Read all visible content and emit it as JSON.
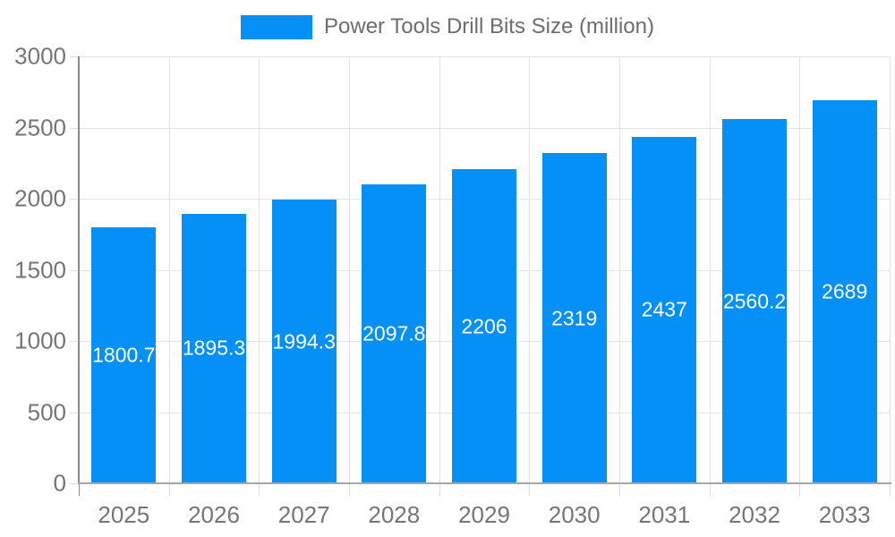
{
  "legend": {
    "label": "Power Tools Drill Bits Size (million)"
  },
  "colors": {
    "bar": "#0590f8",
    "grid": "#e3e3e3",
    "axis_y": "#8a8a8a",
    "axis_x": "#a6a6a6",
    "tick": "#dedede",
    "axis_text": "#757575",
    "legend_text": "#6d6d6d",
    "value_text": "#ffffff"
  },
  "chart_data": {
    "type": "bar",
    "title": "Power Tools Drill Bits Size (million)",
    "categories": [
      "2025",
      "2026",
      "2027",
      "2028",
      "2029",
      "2030",
      "2031",
      "2032",
      "2033"
    ],
    "values": [
      1800.7,
      1895.3,
      1994.3,
      2097.8,
      2206,
      2319,
      2437,
      2560.2,
      2689
    ],
    "value_labels": [
      "1800.7",
      "1895.3",
      "1994.3",
      "2097.8",
      "2206",
      "2319",
      "2437",
      "2560.2",
      "2689"
    ],
    "xlabel": "",
    "ylabel": "",
    "ylim": [
      0,
      3000
    ],
    "yticks": [
      0,
      500,
      1000,
      1500,
      2000,
      2500,
      3000
    ],
    "grid": true,
    "legend_position": "top",
    "value_label_style": "white-centered-inside-bar"
  }
}
